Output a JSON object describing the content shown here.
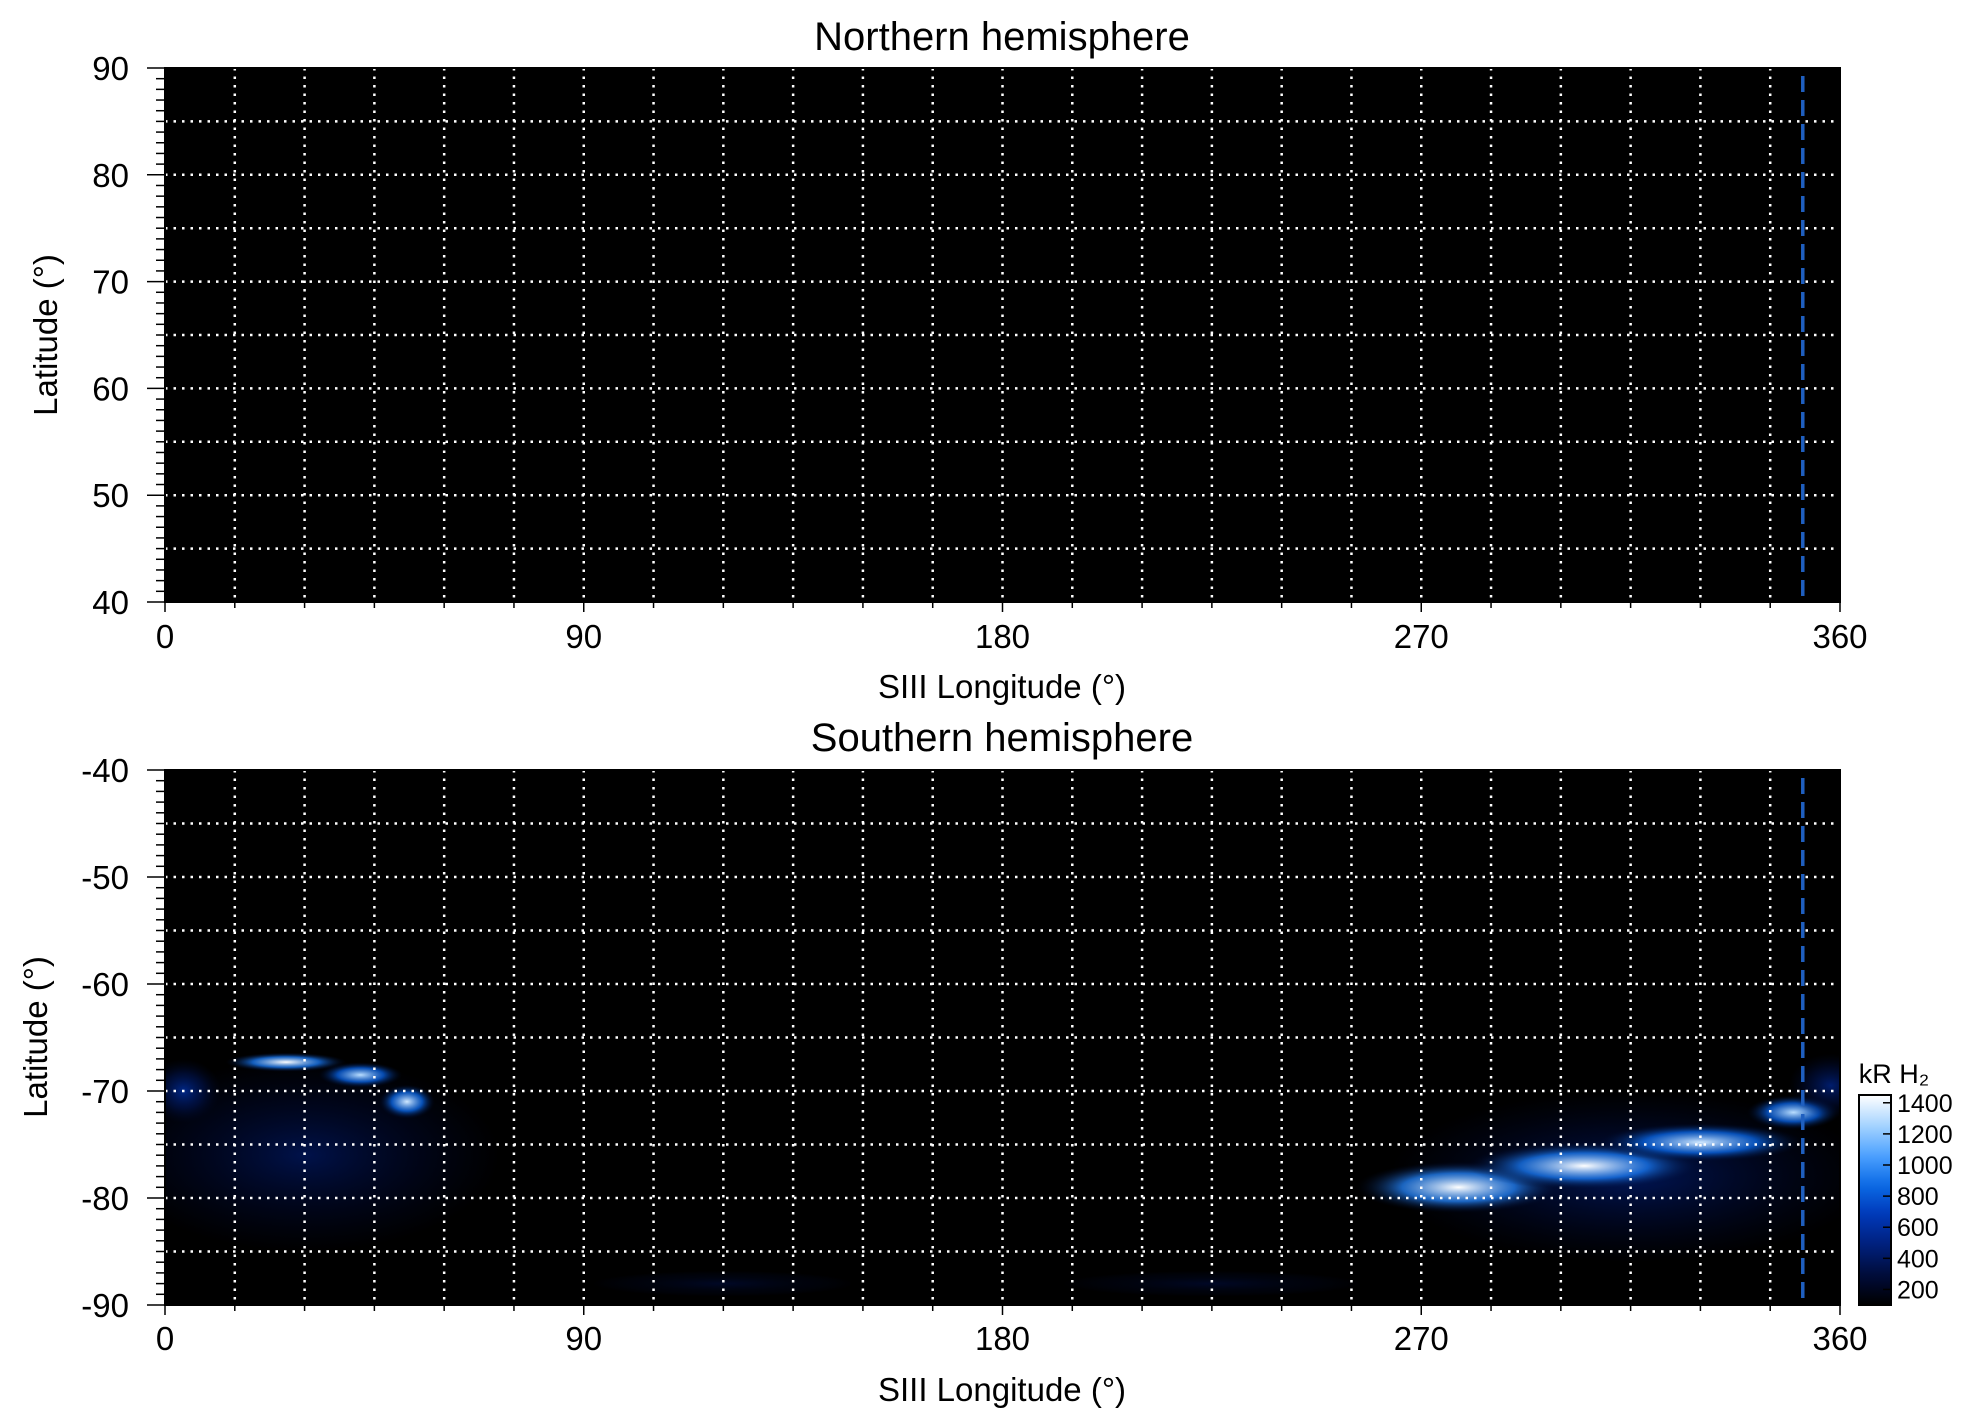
{
  "colors": {
    "background": "#000000",
    "grid": "#ffffff",
    "marker_line": "#1f5fbf",
    "colormap": [
      "#000000",
      "#000c3a",
      "#00207c",
      "#0038b8",
      "#0a6ae6",
      "#4ea2ff",
      "#a6d4ff",
      "#ffffff"
    ]
  },
  "chart_data": [
    {
      "type": "heatmap",
      "title": "Northern hemisphere",
      "xlabel": "SIII Longitude (°)",
      "ylabel": "Latitude (°)",
      "xlim": [
        0,
        360
      ],
      "ylim": [
        40,
        90
      ],
      "x_ticks": [
        0,
        90,
        180,
        270,
        360
      ],
      "y_ticks": [
        40,
        50,
        60,
        70,
        80,
        90
      ],
      "x_grid_step": 15,
      "y_grid_step": 5,
      "grid": true,
      "marker_longitude": 352,
      "emission": []
    },
    {
      "type": "heatmap",
      "title": "Southern hemisphere",
      "xlabel": "SIII Longitude (°)",
      "ylabel": "Latitude (°)",
      "xlim": [
        0,
        360
      ],
      "ylim": [
        -90,
        -40
      ],
      "x_ticks": [
        0,
        90,
        180,
        270,
        360
      ],
      "y_ticks": [
        -90,
        -80,
        -70,
        -60,
        -50,
        -40
      ],
      "x_grid_step": 15,
      "y_grid_step": 5,
      "grid": true,
      "marker_longitude": 352,
      "colorbar": {
        "label": "kR H₂",
        "ticks": [
          200,
          400,
          600,
          800,
          1000,
          1200,
          1400
        ],
        "range": [
          100,
          1450
        ]
      },
      "emission": [
        {
          "region": "diffuse",
          "lon": 30,
          "lat": -76,
          "lon_width": 42,
          "lat_width": 9,
          "value": 380
        },
        {
          "region": "arc",
          "lon": 26,
          "lat": -67.3,
          "lon_width": 13,
          "lat_width": 0.9,
          "value": 1450
        },
        {
          "region": "arc",
          "lon": 42,
          "lat": -68.5,
          "lon_width": 9,
          "lat_width": 1.2,
          "value": 1300
        },
        {
          "region": "arc",
          "lon": 52,
          "lat": -71,
          "lon_width": 6,
          "lat_width": 1.6,
          "value": 1350
        },
        {
          "region": "diffuse",
          "lon": 4,
          "lat": -70,
          "lon_width": 8,
          "lat_width": 3,
          "value": 600
        },
        {
          "region": "diffuse",
          "lon": 315,
          "lat": -78,
          "lon_width": 52,
          "lat_width": 8,
          "value": 420
        },
        {
          "region": "oval",
          "lon": 278,
          "lat": -79,
          "lon_width": 22,
          "lat_width": 2.4,
          "value": 1500
        },
        {
          "region": "oval",
          "lon": 305,
          "lat": -77,
          "lon_width": 25,
          "lat_width": 2.2,
          "value": 1450
        },
        {
          "region": "oval",
          "lon": 330,
          "lat": -74.8,
          "lon_width": 22,
          "lat_width": 1.8,
          "value": 1350
        },
        {
          "region": "oval",
          "lon": 350,
          "lat": -72,
          "lon_width": 10,
          "lat_width": 1.6,
          "value": 1300
        },
        {
          "region": "diffuse",
          "lon": 358,
          "lat": -69.5,
          "lon_width": 9,
          "lat_width": 3,
          "value": 500
        },
        {
          "region": "diffuse",
          "lon": 120,
          "lat": -88,
          "lon_width": 28,
          "lat_width": 1.2,
          "value": 250
        },
        {
          "region": "diffuse",
          "lon": 225,
          "lat": -88,
          "lon_width": 32,
          "lat_width": 1.2,
          "value": 250
        }
      ]
    }
  ]
}
